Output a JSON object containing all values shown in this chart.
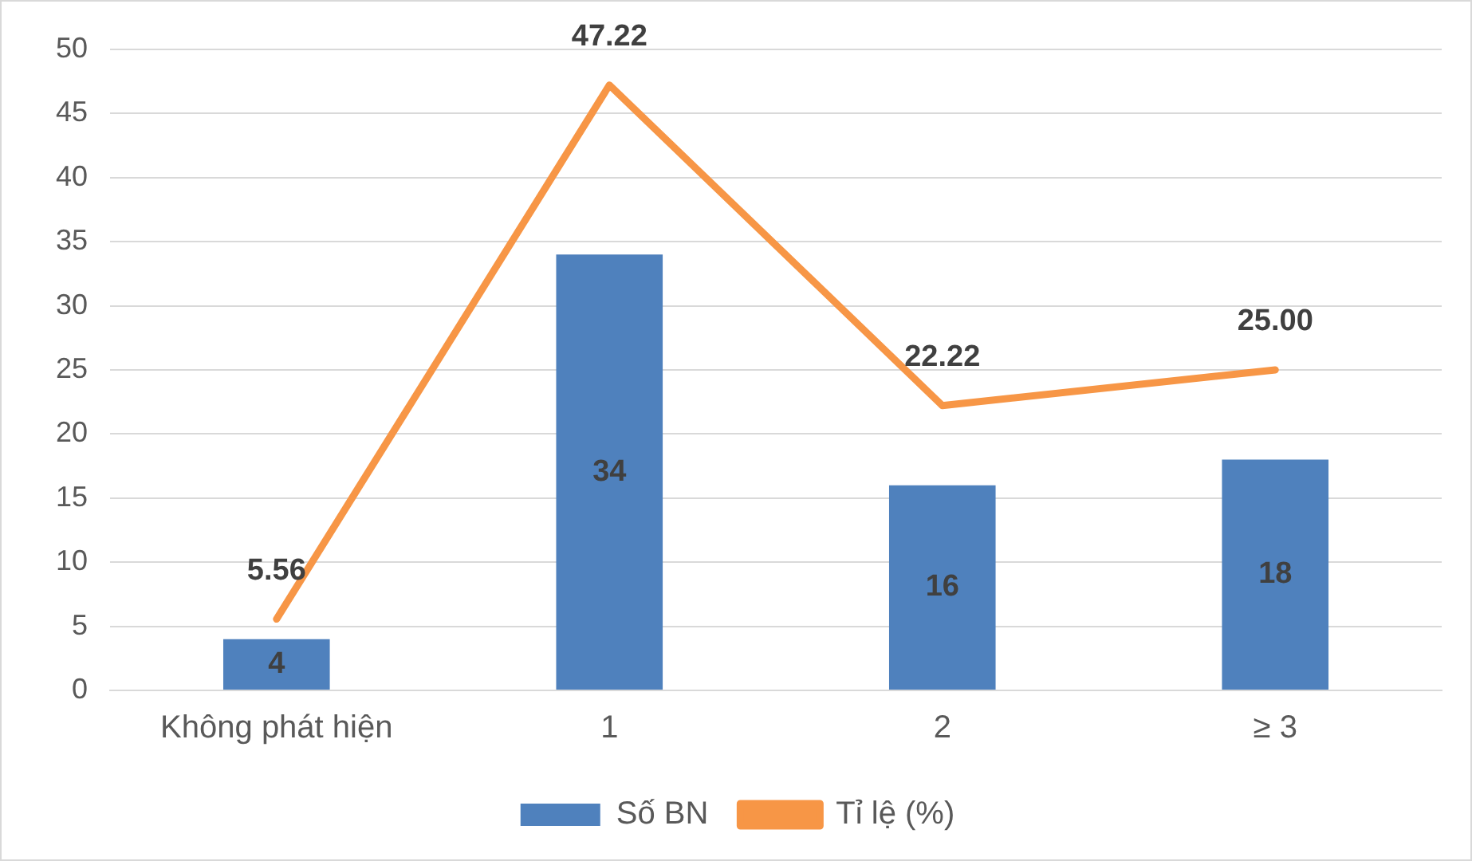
{
  "chart_data": {
    "type": "bar",
    "categories": [
      "Không phát hiện",
      "1",
      "2",
      "≥ 3"
    ],
    "series": [
      {
        "name": "Số BN",
        "color": "#4f81bd",
        "values": [
          4,
          34,
          16,
          18
        ],
        "value_labels": [
          "4",
          "34",
          "16",
          "18"
        ]
      },
      {
        "name": "Tỉ lệ (%)",
        "type": "line",
        "color": "#f79646",
        "values": [
          5.56,
          47.22,
          22.22,
          25
        ],
        "value_labels": [
          "5.56",
          "47.22",
          "22.22",
          "25.00"
        ]
      }
    ],
    "ylim": [
      0,
      50
    ],
    "yticks": [
      0,
      5,
      10,
      15,
      20,
      25,
      30,
      35,
      40,
      45,
      50
    ],
    "grid": "y",
    "legend": "bottom",
    "marker": "none",
    "line_style": "solid"
  }
}
